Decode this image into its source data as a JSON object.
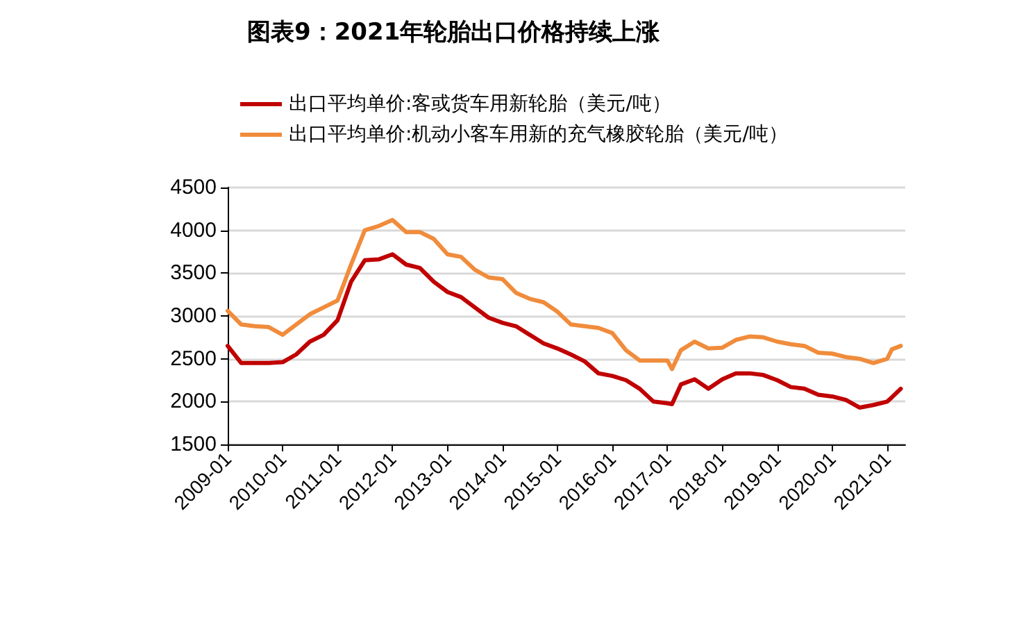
{
  "chart_data": {
    "type": "line",
    "title": "图表9：2021年轮胎出口价格持续上涨",
    "x": [
      "2009-01",
      "2009-04",
      "2009-07",
      "2009-10",
      "2010-01",
      "2010-04",
      "2010-07",
      "2010-10",
      "2011-01",
      "2011-04",
      "2011-07",
      "2011-10",
      "2012-01",
      "2012-04",
      "2012-07",
      "2012-10",
      "2013-01",
      "2013-04",
      "2013-07",
      "2013-10",
      "2014-01",
      "2014-04",
      "2014-07",
      "2014-10",
      "2015-01",
      "2015-04",
      "2015-07",
      "2015-10",
      "2016-01",
      "2016-04",
      "2016-07",
      "2016-10",
      "2017-01",
      "2017-02",
      "2017-04",
      "2017-07",
      "2017-10",
      "2018-01",
      "2018-04",
      "2018-07",
      "2018-10",
      "2019-01",
      "2019-04",
      "2019-07",
      "2019-10",
      "2020-01",
      "2020-04",
      "2020-07",
      "2020-10",
      "2021-01",
      "2021-02",
      "2021-04"
    ],
    "series": [
      {
        "name": "出口平均单价:客或货车用新轮胎（美元/吨）",
        "color": "#c00000",
        "values": [
          2650,
          2450,
          2450,
          2450,
          2460,
          2550,
          2700,
          2780,
          2950,
          3400,
          3650,
          3660,
          3720,
          3600,
          3560,
          3400,
          3280,
          3220,
          3100,
          2980,
          2920,
          2880,
          2780,
          2680,
          2620,
          2550,
          2470,
          2330,
          2300,
          2250,
          2150,
          2000,
          1980,
          1970,
          2200,
          2260,
          2150,
          2260,
          2330,
          2330,
          2310,
          2250,
          2170,
          2150,
          2080,
          2060,
          2020,
          1930,
          1960,
          2000,
          2050,
          2150
        ]
      },
      {
        "name": "出口平均单价:机动小客车用新的充气橡胶轮胎（美元/吨）",
        "color": "#f08c3c",
        "values": [
          3060,
          2900,
          2880,
          2870,
          2780,
          2900,
          3020,
          3100,
          3180,
          3600,
          4000,
          4050,
          4120,
          3980,
          3980,
          3900,
          3720,
          3690,
          3540,
          3450,
          3430,
          3270,
          3200,
          3160,
          3050,
          2900,
          2880,
          2860,
          2800,
          2600,
          2480,
          2480,
          2480,
          2380,
          2600,
          2700,
          2620,
          2630,
          2720,
          2760,
          2750,
          2700,
          2670,
          2650,
          2570,
          2560,
          2520,
          2500,
          2450,
          2500,
          2610,
          2650
        ]
      }
    ],
    "xlim": [
      "2009-01",
      "2021-05"
    ],
    "xticks": [
      "2009-01",
      "2010-01",
      "2011-01",
      "2012-01",
      "2013-01",
      "2014-01",
      "2015-01",
      "2016-01",
      "2017-01",
      "2018-01",
      "2019-01",
      "2020-01",
      "2021-01"
    ],
    "ylim": [
      1500,
      4500
    ],
    "yticks": [
      1500,
      2000,
      2500,
      3000,
      3500,
      4000,
      4500
    ],
    "grid": "y",
    "legend": "top left",
    "line_style": "solid",
    "marker": "none"
  }
}
